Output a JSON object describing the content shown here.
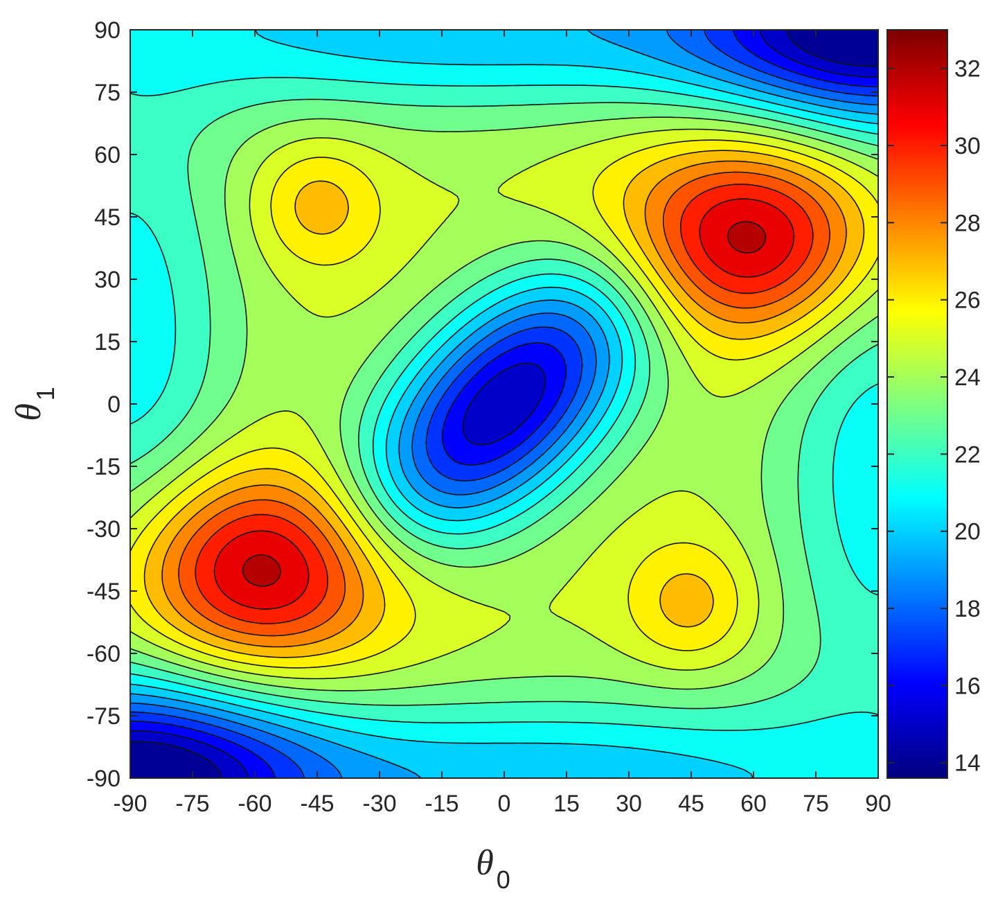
{
  "chart_data": {
    "type": "heatmap",
    "subtype": "filled-contour",
    "title": "",
    "xlabel": {
      "symbol": "θ",
      "subscript": "0"
    },
    "ylabel": {
      "symbol": "θ",
      "subscript": "1"
    },
    "xlim": [
      -90,
      90
    ],
    "ylim": [
      -90,
      90
    ],
    "xticks": [
      -90,
      -75,
      -60,
      -45,
      -30,
      -15,
      0,
      15,
      30,
      45,
      60,
      75,
      90
    ],
    "yticks": [
      -90,
      -75,
      -60,
      -45,
      -30,
      -15,
      0,
      15,
      30,
      45,
      60,
      75,
      90
    ],
    "colorbar": {
      "colormap": "jet",
      "range": [
        13.6,
        33.0
      ],
      "ticks": [
        14,
        16,
        18,
        20,
        22,
        24,
        26,
        28,
        30,
        32
      ]
    },
    "contour_levels": [
      14.5,
      15.5,
      16.5,
      17.5,
      18.5,
      19.5,
      20.5,
      21.5,
      22.5,
      23.5,
      24.5,
      25.5,
      26.5,
      27.5,
      28.5,
      29.5,
      30.5,
      31.5,
      32.5
    ],
    "features": [
      {
        "kind": "maximum",
        "theta0": 57,
        "theta1": 40,
        "value": 32.8
      },
      {
        "kind": "maximum",
        "theta0": -57,
        "theta1": -40,
        "value": 32.8
      },
      {
        "kind": "minimum",
        "theta0": 0,
        "theta1": 0,
        "value": 13.9
      },
      {
        "kind": "minimum",
        "theta0": 90,
        "theta1": 90,
        "value": 13.8
      },
      {
        "kind": "minimum",
        "theta0": -90,
        "theta1": -90,
        "value": 13.8
      },
      {
        "kind": "local-maximum",
        "theta0": -45,
        "theta1": 48,
        "value": 27.0
      },
      {
        "kind": "local-maximum",
        "theta0": 45,
        "theta1": -48,
        "value": 27.0
      }
    ],
    "grid": false,
    "legend": "colorbar-right"
  }
}
